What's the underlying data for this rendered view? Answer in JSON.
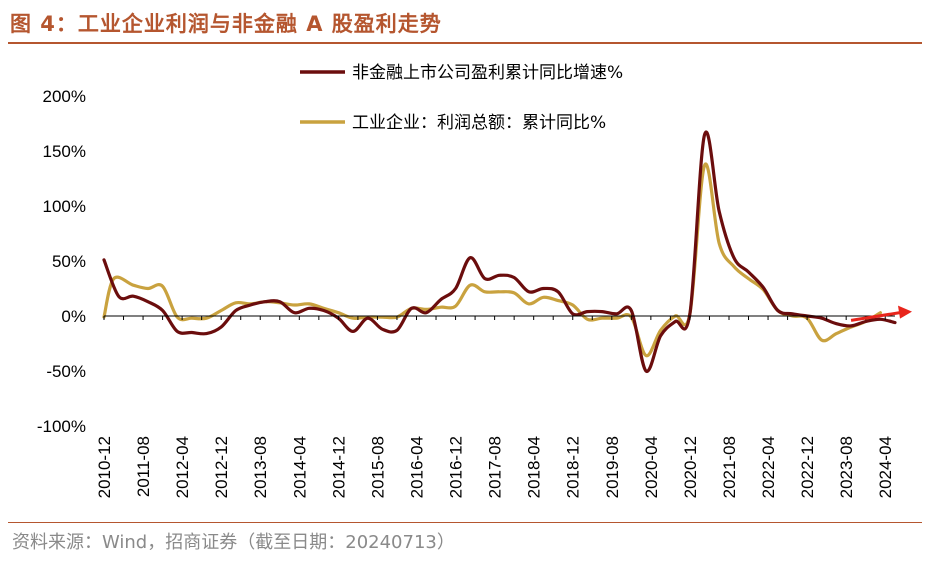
{
  "figure": {
    "title": "图 4：工业企业利润与非金融 A 股盈利走势",
    "source": "资料来源：Wind，招商证券（截至日期：20240713）"
  },
  "colors": {
    "accent": "#b5562f",
    "series_a": "#6b0d0d",
    "series_b": "#c9a23f",
    "arrow": "#e8251c"
  },
  "chart_data": {
    "type": "line",
    "title": "",
    "xlabel": "",
    "ylabel": "",
    "ylim": [
      -100,
      200
    ],
    "y_ticks": [
      200,
      150,
      100,
      50,
      0,
      -50,
      -100
    ],
    "y_tick_labels": [
      "200%",
      "150%",
      "100%",
      "50%",
      "0%",
      "-50%",
      "-100%"
    ],
    "x_range": [
      "2010-12",
      "2024-06"
    ],
    "x_tick_labels": [
      "2010-12",
      "2011-08",
      "2012-04",
      "2012-12",
      "2013-08",
      "2014-04",
      "2014-12",
      "2015-08",
      "2016-04",
      "2016-12",
      "2017-08",
      "2018-04",
      "2018-12",
      "2019-08",
      "2020-04",
      "2020-12",
      "2021-08",
      "2022-04",
      "2022-12",
      "2023-08",
      "2024-04"
    ],
    "legend_position": "top-right",
    "grid": false,
    "series": [
      {
        "name": "非金融上市公司盈利累计同比增速%",
        "color_key": "series_a",
        "x": [
          "2010-12",
          "2011-03",
          "2011-06",
          "2011-09",
          "2011-12",
          "2012-03",
          "2012-06",
          "2012-09",
          "2012-12",
          "2013-03",
          "2013-06",
          "2013-09",
          "2013-12",
          "2014-03",
          "2014-06",
          "2014-09",
          "2014-12",
          "2015-03",
          "2015-06",
          "2015-09",
          "2015-12",
          "2016-03",
          "2016-06",
          "2016-09",
          "2016-12",
          "2017-03",
          "2017-06",
          "2017-09",
          "2017-12",
          "2018-03",
          "2018-06",
          "2018-09",
          "2018-12",
          "2019-03",
          "2019-06",
          "2019-09",
          "2019-12",
          "2020-03",
          "2020-06",
          "2020-09",
          "2020-12",
          "2021-03",
          "2021-06",
          "2021-09",
          "2021-12",
          "2022-03",
          "2022-06",
          "2022-09",
          "2022-12",
          "2023-03",
          "2023-06",
          "2023-09",
          "2023-12",
          "2024-03"
        ],
        "values": [
          51,
          18,
          18,
          13,
          5,
          -14,
          -15,
          -16,
          -10,
          5,
          10,
          13,
          13,
          3,
          7,
          5,
          -2,
          -14,
          -2,
          -12,
          -13,
          7,
          3,
          15,
          25,
          53,
          34,
          37,
          35,
          22,
          25,
          22,
          2,
          4,
          4,
          2,
          5,
          -50,
          -18,
          -5,
          2,
          165,
          95,
          53,
          40,
          26,
          5,
          2,
          0,
          -2,
          -7,
          -9,
          -5,
          -3
        ],
        "extra_points": [
          {
            "x": "2024-06",
            "y": -6
          }
        ]
      },
      {
        "name": "工业企业：利润总额：累计同比%",
        "color_key": "series_b",
        "x": [
          "2010-12",
          "2011-02",
          "2011-06",
          "2011-09",
          "2011-12",
          "2012-03",
          "2012-06",
          "2012-09",
          "2012-12",
          "2013-03",
          "2013-06",
          "2013-09",
          "2013-12",
          "2014-03",
          "2014-06",
          "2014-09",
          "2014-12",
          "2015-03",
          "2015-06",
          "2015-09",
          "2015-12",
          "2016-03",
          "2016-06",
          "2016-09",
          "2016-12",
          "2017-03",
          "2017-06",
          "2017-09",
          "2017-12",
          "2018-03",
          "2018-06",
          "2018-09",
          "2018-12",
          "2019-03",
          "2019-06",
          "2019-09",
          "2019-12",
          "2020-03",
          "2020-06",
          "2020-09",
          "2020-12",
          "2021-03",
          "2021-06",
          "2021-09",
          "2021-12",
          "2022-03",
          "2022-06",
          "2022-09",
          "2022-12",
          "2023-03",
          "2023-06",
          "2023-09",
          "2023-12",
          "2024-03"
        ],
        "values": [
          -1,
          34,
          28,
          25,
          27,
          -1,
          -2,
          -2,
          5,
          12,
          11,
          13,
          12,
          10,
          11,
          7,
          3,
          -2,
          -1,
          -1,
          -1,
          7,
          6,
          8,
          9,
          28,
          22,
          22,
          21,
          11,
          17,
          14,
          10,
          -3,
          -2,
          -2,
          -1,
          -36,
          -13,
          0,
          2,
          137,
          66,
          45,
          34,
          24,
          5,
          0,
          -2,
          -22,
          -16,
          -10,
          -5,
          3
        ]
      }
    ]
  }
}
